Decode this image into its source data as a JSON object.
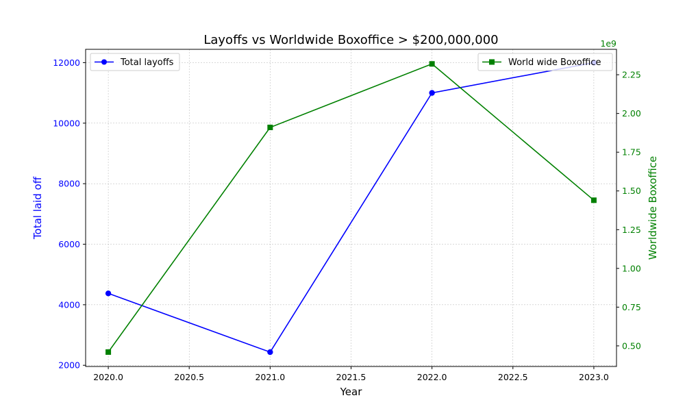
{
  "chart_data": {
    "type": "line",
    "title": "Layoffs vs Worldwide Boxoffice > $200,000,000",
    "xlabel": "Year",
    "x": [
      2020,
      2021,
      2022,
      2023
    ],
    "xlim": [
      2019.86,
      2023.14
    ],
    "xticks": [
      2020.0,
      2020.5,
      2021.0,
      2021.5,
      2022.0,
      2022.5,
      2023.0
    ],
    "xtick_labels": [
      "2020.0",
      "2020.5",
      "2021.0",
      "2021.5",
      "2022.0",
      "2022.5",
      "2023.0"
    ],
    "grid": true,
    "left_axis": {
      "label": "Total laid off",
      "color": "#0000ff",
      "ylim": [
        1960,
        12440
      ],
      "ticks": [
        2000,
        4000,
        6000,
        8000,
        10000,
        12000
      ],
      "tick_labels": [
        "2000",
        "4000",
        "6000",
        "8000",
        "10000",
        "12000"
      ]
    },
    "right_axis": {
      "label": "Worldwide Boxoffice",
      "color": "#008000",
      "offset_text": "1e9",
      "ylim": [
        0.367,
        2.414
      ],
      "ticks": [
        0.5,
        0.75,
        1.0,
        1.25,
        1.5,
        1.75,
        2.0,
        2.25
      ],
      "tick_labels": [
        "0.50",
        "0.75",
        "1.00",
        "1.25",
        "1.50",
        "1.75",
        "2.00",
        "2.25"
      ]
    },
    "series": [
      {
        "name": "Total layoffs",
        "axis": "left",
        "color": "#0000ff",
        "marker": "circle",
        "values": [
          4375,
          2434,
          11000,
          12000
        ],
        "legend_position": "top-left"
      },
      {
        "name": "World wide Boxoffice",
        "axis": "right",
        "color": "#008000",
        "marker": "square",
        "values": [
          0.46,
          1.91,
          2.32,
          1.44
        ],
        "legend_position": "top-right"
      }
    ]
  }
}
